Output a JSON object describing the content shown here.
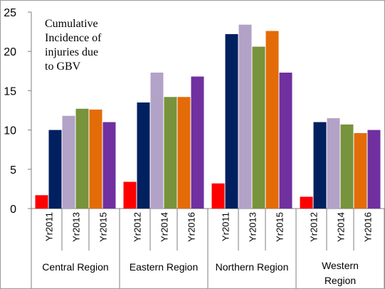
{
  "chart_data": {
    "type": "bar",
    "title_lines": [
      "Cumulative",
      "Incidence of",
      "injuries  due",
      "to GBV"
    ],
    "xlabel": "",
    "ylabel": "",
    "ylim": [
      0,
      25
    ],
    "yticks": [
      0,
      5,
      10,
      15,
      20,
      25
    ],
    "grid": false,
    "legend": "none",
    "year_labels": [
      "Yr2011",
      "Yr2012",
      "Yr2013",
      "Yr2014",
      "Yr2015",
      "Yr2016"
    ],
    "year_colors": [
      "#ff0000",
      "#002060",
      "#b3a2c7",
      "#77933c",
      "#e36c09",
      "#7030a0"
    ],
    "groups": [
      {
        "name": "Central Region",
        "name_lines": [
          "Central Region"
        ],
        "values": [
          1.7,
          10.0,
          11.8,
          12.7,
          12.6,
          11.0
        ],
        "tick_labels": [
          "Yr2011",
          "Yr2013",
          "Yr2015"
        ]
      },
      {
        "name": "Eastern Region",
        "name_lines": [
          "Eastern Region"
        ],
        "values": [
          3.4,
          13.5,
          17.3,
          14.2,
          14.2,
          16.8
        ],
        "tick_labels": [
          "Yr2012",
          "Yr2014",
          "Yr2016"
        ]
      },
      {
        "name": "Northern Region",
        "name_lines": [
          "Northern Region"
        ],
        "values": [
          3.2,
          22.2,
          23.4,
          20.6,
          22.6,
          17.3
        ],
        "tick_labels": [
          "Yr2011",
          "Yr2013",
          "Yr2015"
        ]
      },
      {
        "name": "Western Region",
        "name_lines": [
          "Western",
          "Region"
        ],
        "values": [
          1.5,
          11.0,
          11.5,
          10.7,
          9.6,
          10.0
        ],
        "tick_labels": [
          "Yr2012",
          "Yr2014",
          "Yr2016"
        ]
      }
    ]
  }
}
